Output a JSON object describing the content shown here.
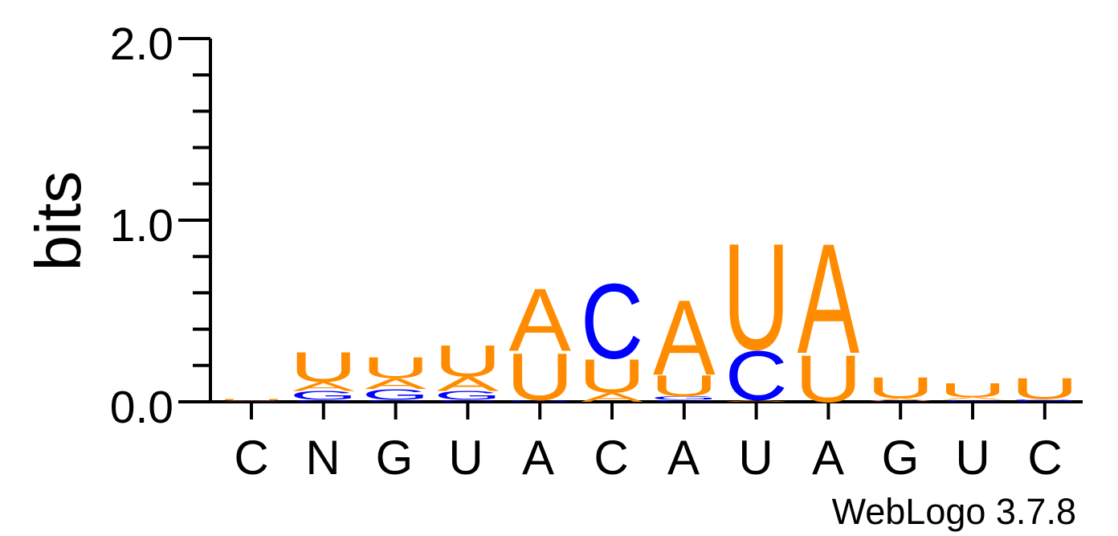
{
  "chart_data": {
    "type": "sequence-logo",
    "title": "",
    "ylabel": "bits",
    "xlabel": "",
    "ylim": [
      0,
      2.0
    ],
    "yticks": [
      "2.0",
      "1.0",
      "0.0"
    ],
    "positions": [
      "C",
      "N",
      "G",
      "U",
      "A",
      "C",
      "A",
      "U",
      "A",
      "G",
      "U",
      "C"
    ],
    "credit": "WebLogo 3.7.8",
    "colors": {
      "A": "#ff8c00",
      "U": "#ff8c00",
      "C": "#0000ff",
      "G": "#0000ff"
    },
    "stacks": [
      [
        {
          "letter": "G",
          "bits": 0.003
        },
        {
          "letter": "A",
          "bits": 0.004
        },
        {
          "letter": "U",
          "bits": 0.008
        }
      ],
      [
        {
          "letter": "C",
          "bits": 0.01
        },
        {
          "letter": "G",
          "bits": 0.05
        },
        {
          "letter": "A",
          "bits": 0.05
        },
        {
          "letter": "U",
          "bits": 0.17
        }
      ],
      [
        {
          "letter": "C",
          "bits": 0.01
        },
        {
          "letter": "G",
          "bits": 0.06
        },
        {
          "letter": "A",
          "bits": 0.06
        },
        {
          "letter": "U",
          "bits": 0.12
        }
      ],
      [
        {
          "letter": "C",
          "bits": 0.01
        },
        {
          "letter": "G",
          "bits": 0.05
        },
        {
          "letter": "A",
          "bits": 0.08
        },
        {
          "letter": "U",
          "bits": 0.18
        }
      ],
      [
        {
          "letter": "G",
          "bits": 0.01
        },
        {
          "letter": "U",
          "bits": 0.27
        },
        {
          "letter": "A",
          "bits": 0.36
        }
      ],
      [
        {
          "letter": "A",
          "bits": 0.05
        },
        {
          "letter": "U",
          "bits": 0.19
        },
        {
          "letter": "C",
          "bits": 0.43
        }
      ],
      [
        {
          "letter": "C",
          "bits": 0.01
        },
        {
          "letter": "G",
          "bits": 0.02
        },
        {
          "letter": "U",
          "bits": 0.12
        },
        {
          "letter": "A",
          "bits": 0.43
        }
      ],
      [
        {
          "letter": "A",
          "bits": 0.01
        },
        {
          "letter": "C",
          "bits": 0.28
        },
        {
          "letter": "U",
          "bits": 0.61
        }
      ],
      [
        {
          "letter": "U",
          "bits": 0.27
        },
        {
          "letter": "A",
          "bits": 0.63
        }
      ],
      [
        {
          "letter": "C",
          "bits": 0.005
        },
        {
          "letter": "A",
          "bits": 0.015
        },
        {
          "letter": "U",
          "bits": 0.12
        }
      ],
      [
        {
          "letter": "C",
          "bits": 0.01
        },
        {
          "letter": "A",
          "bits": 0.015
        },
        {
          "letter": "U",
          "bits": 0.08
        }
      ],
      [
        {
          "letter": "C",
          "bits": 0.005
        },
        {
          "letter": "G",
          "bits": 0.01
        },
        {
          "letter": "U",
          "bits": 0.12
        }
      ]
    ]
  }
}
